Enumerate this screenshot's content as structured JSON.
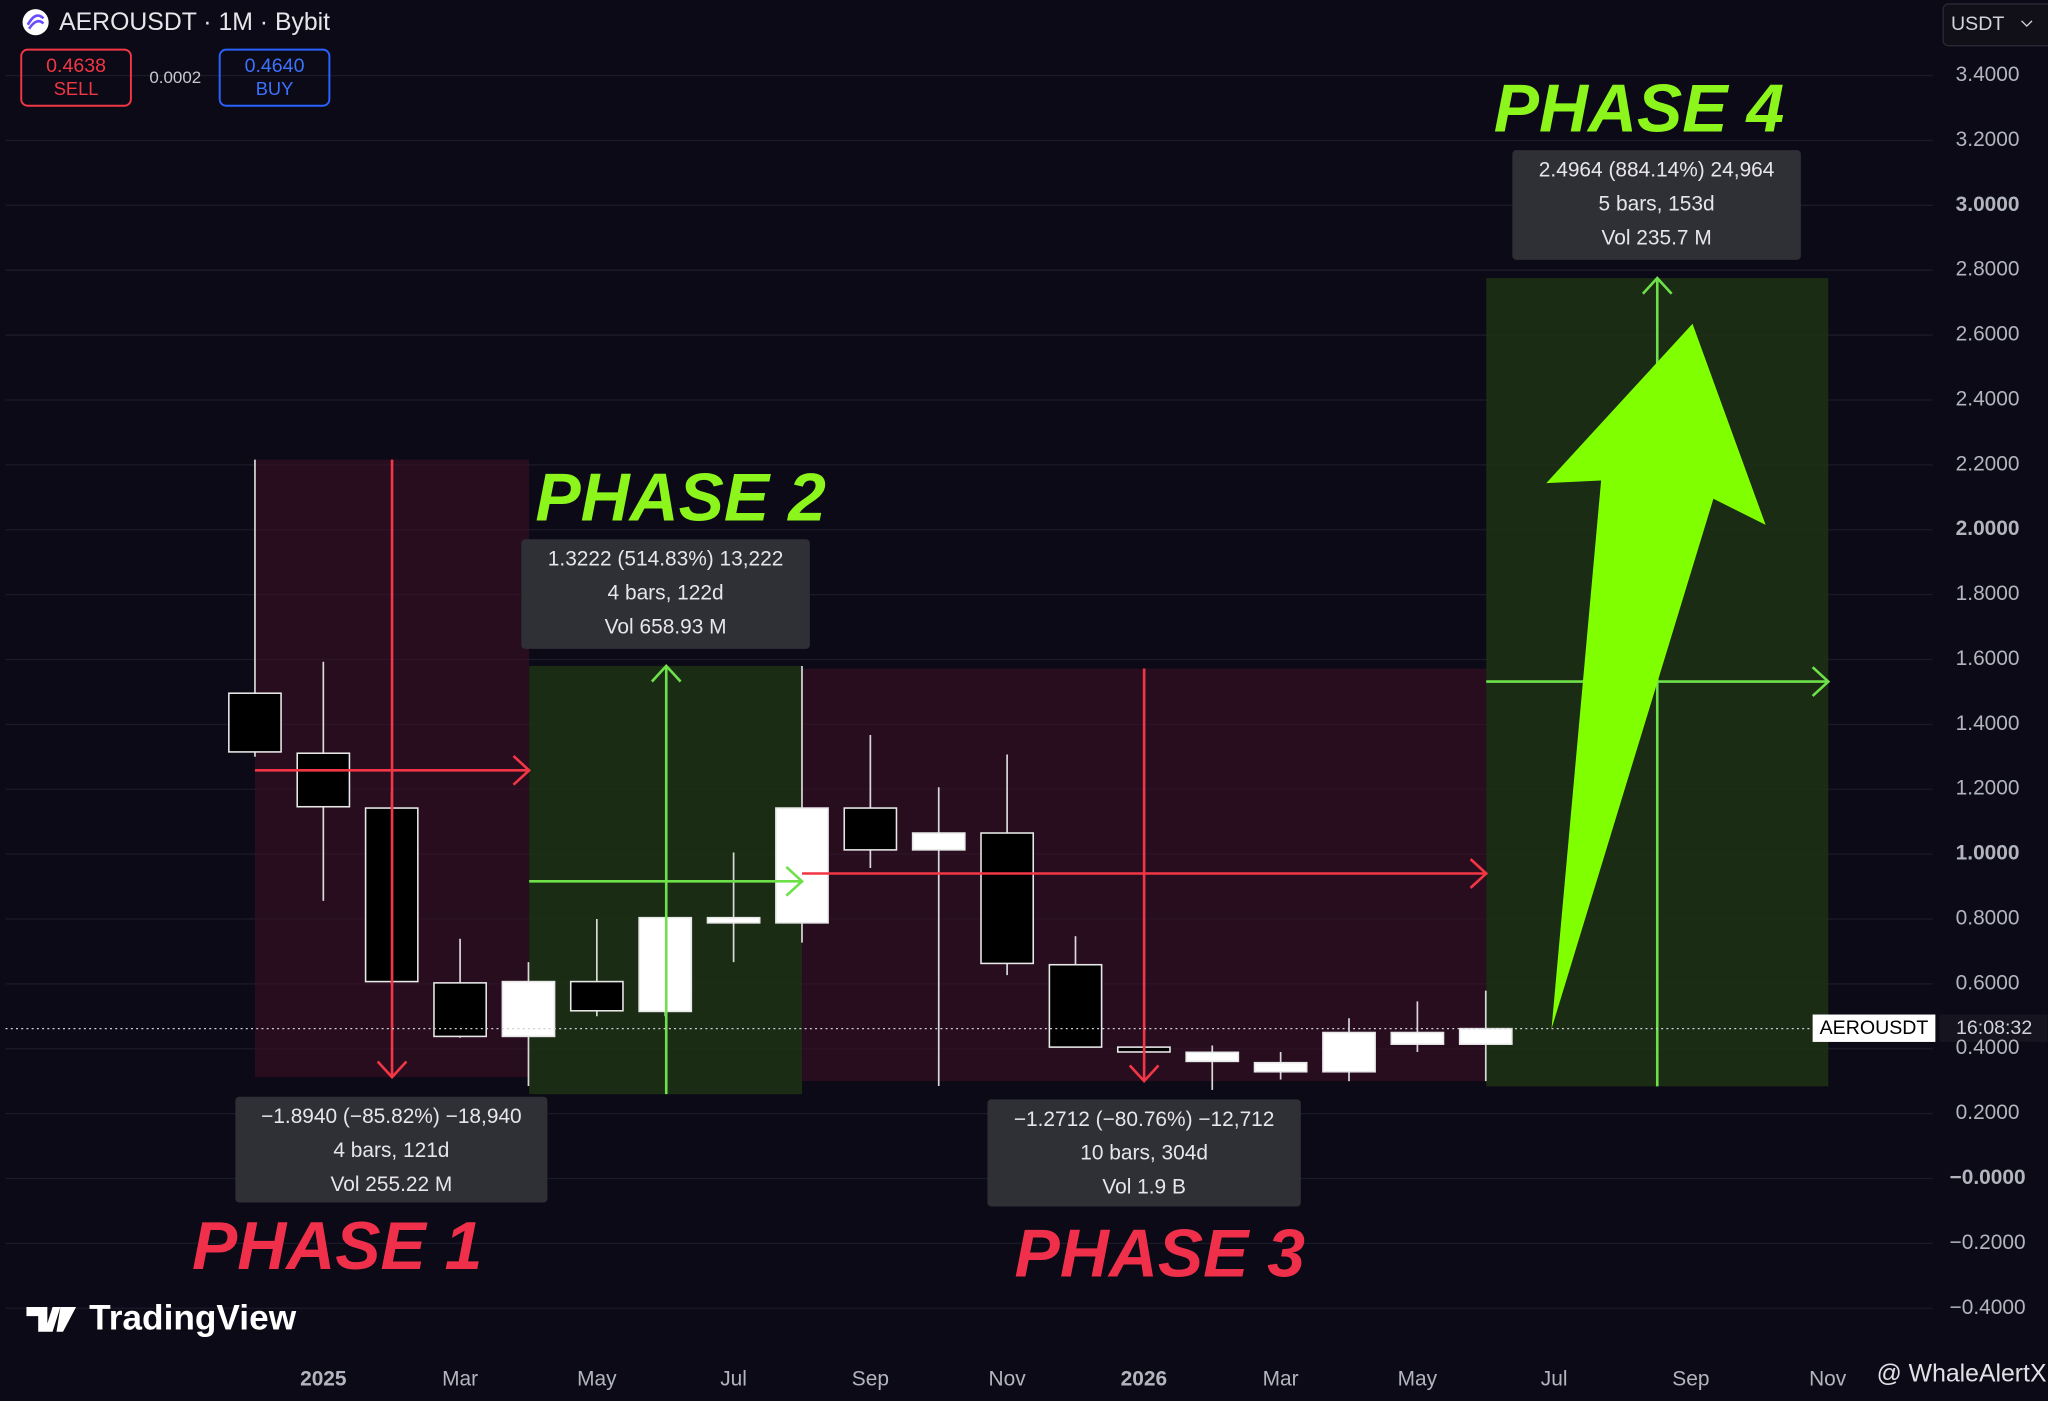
{
  "chart_data": {
    "type": "candlestick",
    "title": "AEROUSDT · 1M · Bybit",
    "categories": [
      null,
      "2025",
      null,
      "Mar",
      null,
      "May",
      null,
      "Jul",
      null,
      "Sep",
      null,
      "Nov",
      null,
      "2026",
      null,
      "Mar",
      null,
      "May",
      null,
      "Jul",
      null,
      "Sep",
      null,
      "Nov"
    ],
    "open": [
      1.496,
      1.311,
      1.142,
      0.603,
      0.438,
      0.607,
      0.515,
      0.788,
      0.788,
      1.142,
      1.013,
      1.065,
      0.659,
      0.405,
      0.361,
      0.329,
      0.329,
      0.414,
      0.414,
      null,
      null,
      null,
      null,
      null
    ],
    "high": [
      2.216,
      1.593,
      1.19,
      0.739,
      0.667,
      0.8,
      0.804,
      1.005,
      1.58,
      1.367,
      1.206,
      1.307,
      0.747,
      0.635,
      0.41,
      0.39,
      0.494,
      0.546,
      0.579,
      null,
      null,
      null,
      null,
      null
    ],
    "low": [
      1.3,
      0.856,
      0.6,
      0.434,
      0.285,
      0.5,
      0.5,
      0.667,
      0.727,
      0.957,
      0.285,
      0.627,
      0.405,
      0.354,
      0.273,
      0.305,
      0.3,
      0.39,
      0.3,
      null,
      null,
      null,
      null,
      null
    ],
    "close": [
      1.315,
      1.146,
      0.607,
      0.438,
      0.607,
      0.517,
      0.804,
      0.804,
      1.142,
      1.013,
      1.065,
      0.663,
      0.405,
      0.39,
      0.389,
      0.357,
      0.45,
      0.45,
      0.462,
      null,
      null,
      null,
      null,
      null
    ],
    "up_color": "#ffffff",
    "down_color": "#000000",
    "ylim": [
      -0.533,
      3.633
    ],
    "yticks": [
      {
        "value": -0.4,
        "label": "−0.4000"
      },
      {
        "value": -0.2,
        "label": "−0.2000"
      },
      {
        "value": 0,
        "label": "−0.0000"
      },
      {
        "value": 0.2,
        "label": "0.2000"
      },
      {
        "value": 0.4,
        "label": "0.4000"
      },
      {
        "value": 0.6,
        "label": "0.6000"
      },
      {
        "value": 0.8,
        "label": "0.8000"
      },
      {
        "value": 1,
        "label": "1.0000"
      },
      {
        "value": 1.2,
        "label": "1.2000"
      },
      {
        "value": 1.4,
        "label": "1.4000"
      },
      {
        "value": 1.6,
        "label": "1.6000"
      },
      {
        "value": 1.8,
        "label": "1.8000"
      },
      {
        "value": 2,
        "label": "2.0000"
      },
      {
        "value": 2.2,
        "label": "2.2000"
      },
      {
        "value": 2.4,
        "label": "2.4000"
      },
      {
        "value": 2.6,
        "label": "2.6000"
      },
      {
        "value": 2.8,
        "label": "2.8000"
      },
      {
        "value": 3,
        "label": "3.0000"
      },
      {
        "value": 3.2,
        "label": "3.2000"
      },
      {
        "value": 3.4,
        "label": "3.4000"
      }
    ],
    "grid": true,
    "annotations": [
      {
        "label": "PHASE 1",
        "color": "#f0304a",
        "lines": [
          "−1.8940 (−85.82%) −18,940",
          "4 bars, 121d",
          "Vol 255.22 M"
        ]
      },
      {
        "label": "PHASE 2",
        "color": "#8cf51c",
        "lines": [
          "1.3222 (514.83%) 13,222",
          "4 bars, 122d",
          "Vol 658.93 M"
        ]
      },
      {
        "label": "PHASE 3",
        "color": "#f0304a",
        "lines": [
          "−1.2712 (−80.76%) −12,712",
          "10 bars, 304d",
          "Vol 1.9 B"
        ]
      },
      {
        "label": "PHASE 4",
        "color": "#8cf51c",
        "lines": [
          "2.4964 (884.14%) 24,964",
          "5 bars, 153d",
          "Vol 235.7 M"
        ]
      }
    ]
  },
  "ui": {
    "sell_price": "0.4638",
    "sell_label": "SELL",
    "spread": "0.0002",
    "buy_price": "0.4640",
    "buy_label": "BUY",
    "currency": "USDT",
    "price_tag_symbol": "AEROUSDT",
    "price_tag_time": "16:08:32",
    "brand": "TradingView",
    "watermark": "@ WhaleAlertX"
  }
}
